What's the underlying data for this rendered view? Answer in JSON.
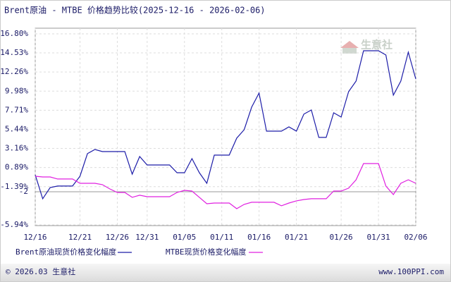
{
  "chart_data": {
    "type": "line",
    "title": "Brent原油 - MTBE 价格趋势比较(2025-12-16 - 2026-02-06)",
    "watermark": "生意社",
    "footer_left": "© 2026.03 生意社",
    "footer_right": "www.100PPI.com",
    "categories": [
      "12/16",
      null,
      null,
      null,
      null,
      null,
      "12/21",
      null,
      null,
      null,
      null,
      "12/26",
      null,
      null,
      null,
      "12/31",
      null,
      null,
      null,
      null,
      "01/05",
      null,
      null,
      null,
      null,
      "01/11",
      null,
      null,
      null,
      null,
      "01/16",
      null,
      null,
      null,
      null,
      "01/21",
      null,
      null,
      null,
      null,
      null,
      "01/26",
      null,
      null,
      null,
      null,
      "01/31",
      null,
      null,
      null,
      null,
      "02/06"
    ],
    "series": [
      {
        "name": "Brent原油现货价格变化幅度",
        "color": "#1c1ca8",
        "values": [
          0.02,
          -2.83,
          -1.49,
          -1.32,
          -1.32,
          -1.32,
          -0.15,
          2.54,
          3.04,
          2.79,
          2.79,
          2.79,
          2.79,
          0.1,
          2.2,
          1.19,
          1.19,
          1.19,
          1.19,
          0.27,
          0.27,
          1.95,
          0.27,
          -0.99,
          2.37,
          2.37,
          2.37,
          4.38,
          5.39,
          8.07,
          9.75,
          5.22,
          5.22,
          5.22,
          5.72,
          5.22,
          7.24,
          7.74,
          4.47,
          4.47,
          7.4,
          6.9,
          9.92,
          11.18,
          14.79,
          14.79,
          14.79,
          14.28,
          9.5,
          11.18,
          14.62,
          11.43
        ]
      },
      {
        "name": "MTBE现货价格变化幅度",
        "color": "#e020e0",
        "values": [
          -0.15,
          -0.23,
          -0.23,
          -0.48,
          -0.48,
          -0.48,
          -0.99,
          -0.99,
          -0.99,
          -1.15,
          -1.66,
          -2.08,
          -2.08,
          -2.66,
          -2.41,
          -2.58,
          -2.58,
          -2.58,
          -2.58,
          -2.08,
          -1.83,
          -1.91,
          -2.66,
          -3.42,
          -3.34,
          -3.34,
          -3.34,
          -4.01,
          -3.5,
          -3.25,
          -3.25,
          -3.25,
          -3.25,
          -3.67,
          -3.34,
          -3.08,
          -2.92,
          -2.83,
          -2.83,
          -2.83,
          -1.91,
          -1.91,
          -1.57,
          -0.57,
          1.36,
          1.36,
          1.36,
          -1.32,
          -2.33,
          -0.99,
          -0.57,
          -0.99
        ]
      }
    ],
    "ylim": [
      -5.94,
      16.8
    ],
    "yticks": [
      {
        "value": 16.8,
        "label": "16.80%"
      },
      {
        "value": 14.53,
        "label": "14.53%"
      },
      {
        "value": 12.26,
        "label": "12.26%"
      },
      {
        "value": 9.98,
        "label": "9.98%"
      },
      {
        "value": 7.71,
        "label": "7.71%"
      },
      {
        "value": 5.44,
        "label": "5.44%"
      },
      {
        "value": 3.16,
        "label": "3.16%"
      },
      {
        "value": 0.89,
        "label": "0.89%"
      },
      {
        "value": -1.39,
        "label": "-1.39%"
      },
      -2,
      {
        "value": -5.94,
        "label": "-5.94%"
      }
    ],
    "grid": true
  }
}
